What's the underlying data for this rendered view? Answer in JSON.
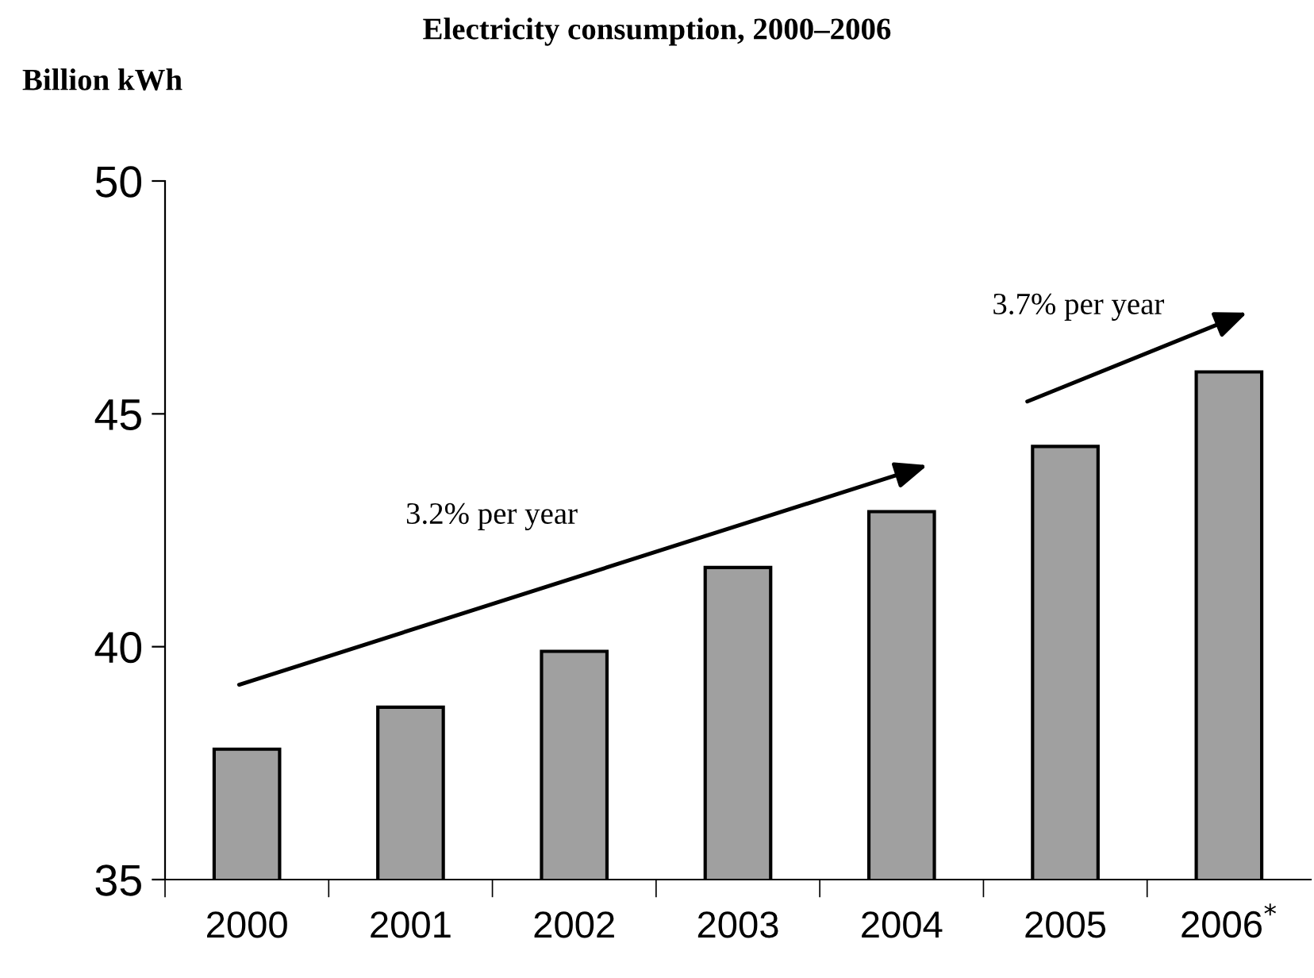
{
  "chart_data": {
    "type": "bar",
    "title": "Electricity consumption, 2000–2006",
    "ylabel": "Billion kWh",
    "categories": [
      "2000",
      "2001",
      "2002",
      "2003",
      "2004",
      "2005",
      "2006$^{*}$"
    ],
    "values": [
      37.8,
      38.7,
      39.9,
      41.7,
      42.9,
      44.3,
      45.9
    ],
    "color": "#a0a0a0",
    "ylim": [
      35,
      50
    ],
    "yticks": [
      35,
      40,
      45,
      50
    ],
    "grid": false,
    "legend": false,
    "annotations": [
      "3.2% per year",
      "3.7% per year"
    ]
  }
}
